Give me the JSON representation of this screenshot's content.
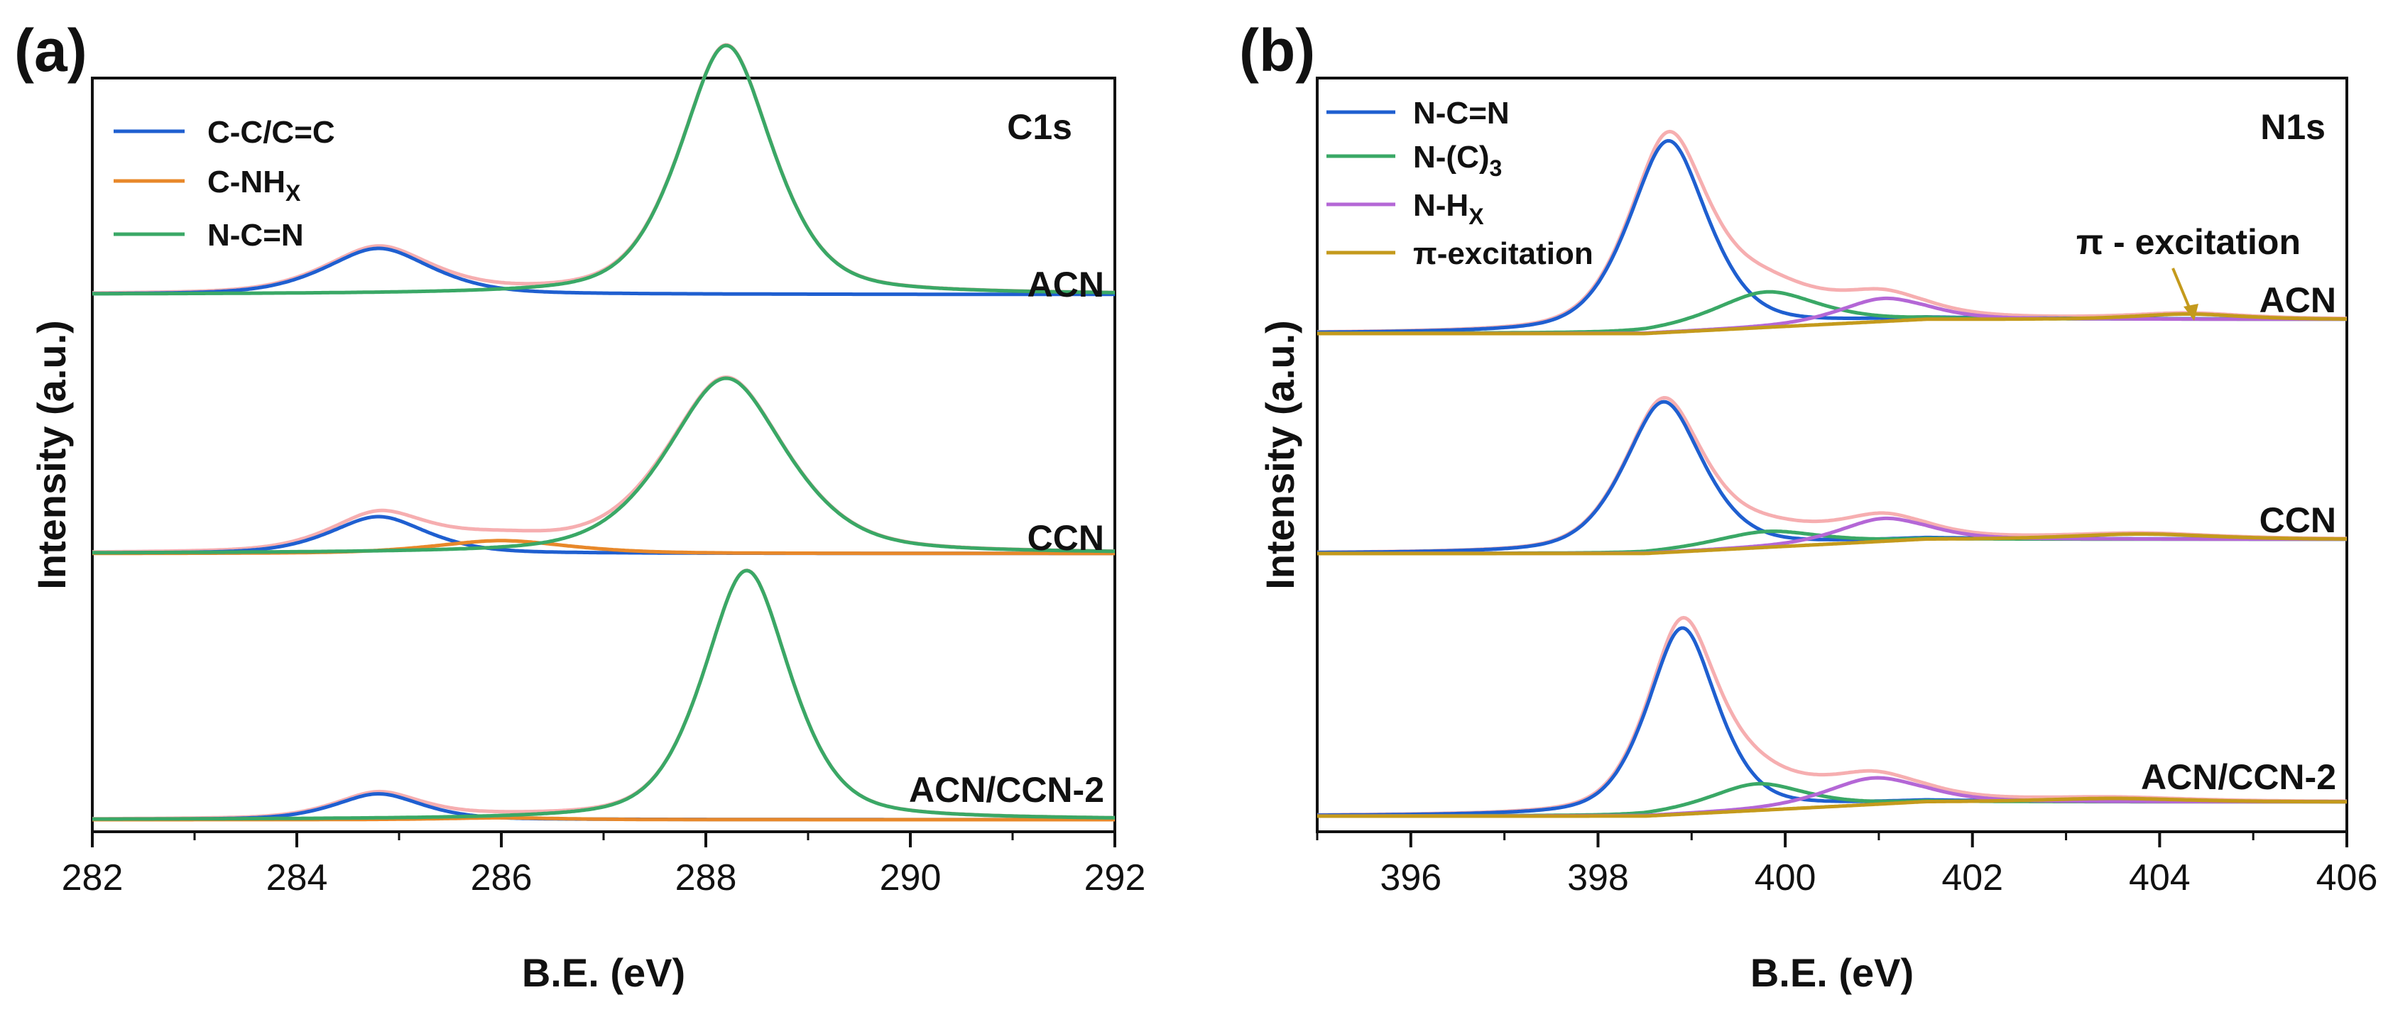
{
  "colors": {
    "blue": "#1f5fd0",
    "orange": "#e8882a",
    "green": "#3aa866",
    "purple": "#b467d6",
    "gold": "#c49a1c",
    "envelope": "#f6aeb0",
    "axis": "#111111"
  },
  "chart_data": [
    {
      "panel": "(a)",
      "type": "line",
      "title": "C1s",
      "xlabel": "B.E. (eV)",
      "ylabel": "Intensity (a.u.)",
      "xlim": [
        282,
        292
      ],
      "xticks": [
        282,
        284,
        286,
        288,
        290,
        292
      ],
      "grid": false,
      "legend": [
        {
          "name": "C-C/C=C",
          "base": "C-C/C=C",
          "sub": "",
          "color": "#1f5fd0"
        },
        {
          "name": "C-NHX",
          "base": "C-NH",
          "sub": "X",
          "color": "#e8882a"
        },
        {
          "name": "N-C=N",
          "base": "N-C=N",
          "sub": "",
          "color": "#3aa866"
        }
      ],
      "legend_position": "top-left",
      "samples": [
        {
          "name": "ACN",
          "offset": 3.2,
          "peaks": [
            {
              "component": "C-C/C=C",
              "color": "#1f5fd0",
              "center": 284.8,
              "height": 0.25,
              "width": 0.55,
              "tail": 0.0
            },
            {
              "component": "N-C=N",
              "color": "#3aa866",
              "center": 288.2,
              "height": 1.35,
              "width": 0.48,
              "tail": 0.03
            }
          ]
        },
        {
          "name": "CCN",
          "offset": 1.6,
          "peaks": [
            {
              "component": "C-C/C=C",
              "color": "#1f5fd0",
              "center": 284.8,
              "height": 0.2,
              "width": 0.5,
              "tail": 0.0
            },
            {
              "component": "C-NHX",
              "color": "#e8882a",
              "center": 286.0,
              "height": 0.07,
              "width": 0.7,
              "tail": 0.0
            },
            {
              "component": "N-C=N",
              "color": "#3aa866",
              "center": 288.2,
              "height": 0.95,
              "width": 0.62,
              "tail": 0.03
            }
          ]
        },
        {
          "name": "ACN/CCN-2",
          "offset": 0.0,
          "peaks": [
            {
              "component": "C-C/C=C",
              "color": "#1f5fd0",
              "center": 284.8,
              "height": 0.14,
              "width": 0.45,
              "tail": 0.0
            },
            {
              "component": "C-NHX",
              "color": "#e8882a",
              "center": 286.0,
              "height": 0.01,
              "width": 0.6,
              "tail": 0.0
            },
            {
              "component": "N-C=N",
              "color": "#3aa866",
              "center": 288.4,
              "height": 1.35,
              "width": 0.45,
              "tail": 0.02
            }
          ]
        }
      ]
    },
    {
      "panel": "(b)",
      "type": "line",
      "title": "N1s",
      "xlabel": "B.E. (eV)",
      "ylabel": "Intensity (a.u.)",
      "xlim": [
        395,
        406
      ],
      "xticks": [
        396,
        398,
        400,
        402,
        404,
        406
      ],
      "grid": false,
      "legend": [
        {
          "name": "N-C=N",
          "base": "N-C=N",
          "sub": "",
          "color": "#1f5fd0"
        },
        {
          "name": "N-(C)3",
          "base": "N-(C)",
          "sub": "3",
          "color": "#3aa866"
        },
        {
          "name": "N-HX",
          "base": "N-H",
          "sub": "X",
          "color": "#b467d6"
        },
        {
          "name": "π-excitation",
          "base": "π-excitation",
          "sub": "",
          "color": "#c49a1c"
        }
      ],
      "legend_position": "top-left",
      "annotation": {
        "text": "π - excitation",
        "x": 404.3
      },
      "samples": [
        {
          "name": "ACN",
          "offset": 2.9,
          "baseline": {
            "y0": 0.0,
            "y1": 0.08,
            "start": 398.5,
            "end": 401.5
          },
          "peaks": [
            {
              "component": "N-C=N",
              "color": "#1f5fd0",
              "center": 398.75,
              "height": 1.08,
              "width": 0.45,
              "tail": 0.0
            },
            {
              "component": "N-(C)3",
              "color": "#3aa866",
              "center": 399.8,
              "height": 0.2,
              "width": 0.6,
              "tail": 0.0
            },
            {
              "component": "N-HX",
              "color": "#b467d6",
              "center": 401.05,
              "height": 0.13,
              "width": 0.5,
              "tail": 0.0
            },
            {
              "component": "π-excitation",
              "color": "#c49a1c",
              "center": 404.3,
              "height": 0.03,
              "width": 0.6,
              "tail": 0.0
            }
          ]
        },
        {
          "name": "CCN",
          "offset": 1.45,
          "baseline": {
            "y0": 0.0,
            "y1": 0.08,
            "start": 398.5,
            "end": 401.5
          },
          "peaks": [
            {
              "component": "N-C=N",
              "color": "#1f5fd0",
              "center": 398.7,
              "height": 0.85,
              "width": 0.45,
              "tail": 0.0
            },
            {
              "component": "N-(C)3",
              "color": "#3aa866",
              "center": 399.8,
              "height": 0.09,
              "width": 0.6,
              "tail": 0.0
            },
            {
              "component": "N-HX",
              "color": "#b467d6",
              "center": 401.05,
              "height": 0.13,
              "width": 0.5,
              "tail": 0.0
            },
            {
              "component": "π-excitation",
              "color": "#c49a1c",
              "center": 403.8,
              "height": 0.03,
              "width": 0.8,
              "tail": 0.0
            }
          ]
        },
        {
          "name": "ACN/CCN-2",
          "offset": 0.0,
          "baseline": {
            "y0": 0.0,
            "y1": 0.08,
            "start": 398.5,
            "end": 401.5
          },
          "peaks": [
            {
              "component": "N-C=N",
              "color": "#1f5fd0",
              "center": 398.9,
              "height": 1.05,
              "width": 0.4,
              "tail": 0.0
            },
            {
              "component": "N-(C)3",
              "color": "#3aa866",
              "center": 399.7,
              "height": 0.15,
              "width": 0.55,
              "tail": 0.0
            },
            {
              "component": "N-HX",
              "color": "#b467d6",
              "center": 400.95,
              "height": 0.15,
              "width": 0.55,
              "tail": 0.0
            },
            {
              "component": "π-excitation",
              "color": "#c49a1c",
              "center": 403.5,
              "height": 0.02,
              "width": 0.8,
              "tail": 0.0
            }
          ]
        }
      ]
    }
  ]
}
